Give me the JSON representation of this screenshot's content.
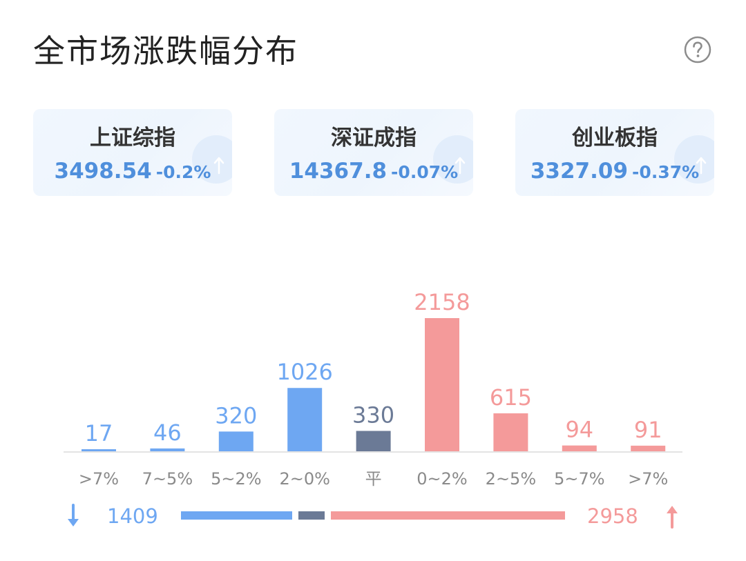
{
  "header": {
    "title": "全市场涨跌幅分布",
    "help_icon": "question-circle-icon"
  },
  "indices": [
    {
      "name": "上证综指",
      "value": "3498.54",
      "change": "-0.2%"
    },
    {
      "name": "深证成指",
      "value": "14367.8",
      "change": "-0.07%"
    },
    {
      "name": "创业板指",
      "value": "3327.09",
      "change": "-0.37%"
    }
  ],
  "colors": {
    "down": "#6ea7f2",
    "flat": "#6b7a96",
    "up": "#f49a9a",
    "axis": "#e3e3e3",
    "category_label": "#8a8a8a",
    "index_value": "#4f8fdc"
  },
  "chart_data": {
    "type": "bar",
    "categories": [
      ">7%",
      "7~5%",
      "5~2%",
      "2~0%",
      "平",
      "0~2%",
      "2~5%",
      "5~7%",
      ">7%"
    ],
    "values": [
      17,
      46,
      320,
      1026,
      330,
      2158,
      615,
      94,
      91
    ],
    "groups": [
      "down",
      "down",
      "down",
      "down",
      "flat",
      "up",
      "up",
      "up",
      "up"
    ],
    "grid": false
  },
  "summary": {
    "down_count": "1409",
    "up_count": "2958",
    "down_icon": "arrow-down-icon",
    "up_icon": "arrow-up-icon"
  }
}
